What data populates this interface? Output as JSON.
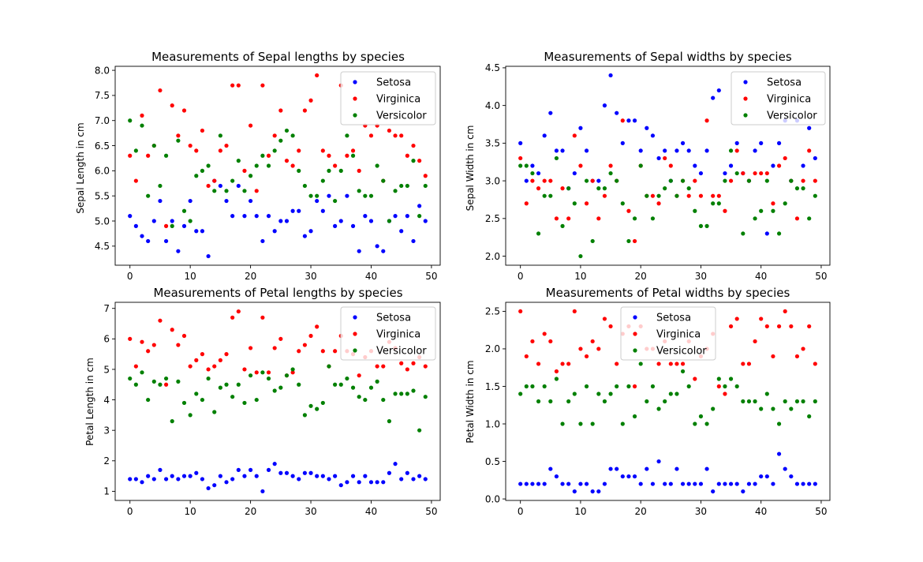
{
  "colors": {
    "Setosa": "#0000ff",
    "Virginica": "#ff0000",
    "Versicolor": "#008000"
  },
  "chart_data": [
    {
      "type": "scatter",
      "title": "Measurements of Sepal lengths by species",
      "xlabel": "",
      "ylabel": "Sepal Length in cm",
      "xlim": [
        -2.45,
        51.45
      ],
      "ylim": [
        4.12,
        8.08
      ],
      "xticks": [
        0,
        10,
        20,
        30,
        40,
        50
      ],
      "yticks": [
        4.5,
        5.0,
        5.5,
        6.0,
        6.5,
        7.0,
        7.5,
        8.0
      ],
      "ytick_labels": [
        "4.5",
        "5.0",
        "5.5",
        "6.0",
        "6.5",
        "7.0",
        "7.5",
        "8.0"
      ],
      "legend_location": "upper right",
      "series": [
        {
          "name": "Setosa",
          "color": "blue",
          "values": [
            5.1,
            4.9,
            4.7,
            4.6,
            5.0,
            5.4,
            4.6,
            5.0,
            4.4,
            4.9,
            5.4,
            4.8,
            4.8,
            4.3,
            5.8,
            5.7,
            5.4,
            5.1,
            5.7,
            5.1,
            5.4,
            5.1,
            4.6,
            5.1,
            4.8,
            5.0,
            5.0,
            5.2,
            5.2,
            4.7,
            4.8,
            5.4,
            5.2,
            5.5,
            4.9,
            5.0,
            5.5,
            4.9,
            4.4,
            5.1,
            5.0,
            4.5,
            4.4,
            5.0,
            5.1,
            4.8,
            5.1,
            4.6,
            5.3,
            5.0
          ]
        },
        {
          "name": "Virginica",
          "color": "red",
          "values": [
            6.3,
            5.8,
            7.1,
            6.3,
            6.5,
            7.6,
            4.9,
            7.3,
            6.7,
            7.2,
            6.5,
            6.4,
            6.8,
            5.7,
            5.8,
            6.4,
            6.5,
            7.7,
            7.7,
            6.0,
            6.9,
            5.6,
            7.7,
            6.3,
            6.7,
            7.2,
            6.2,
            6.1,
            6.4,
            7.2,
            7.4,
            7.9,
            6.4,
            6.3,
            6.1,
            7.7,
            6.3,
            6.4,
            6.0,
            6.9,
            6.7,
            6.9,
            5.8,
            6.8,
            6.7,
            6.7,
            6.3,
            6.5,
            6.2,
            5.9
          ]
        },
        {
          "name": "Versicolor",
          "color": "green",
          "values": [
            7.0,
            6.4,
            6.9,
            5.5,
            6.5,
            5.7,
            6.3,
            4.9,
            6.6,
            5.2,
            5.0,
            5.9,
            6.0,
            6.1,
            5.6,
            6.7,
            5.6,
            5.8,
            6.2,
            5.6,
            5.9,
            6.1,
            6.3,
            6.1,
            6.4,
            6.6,
            6.8,
            6.7,
            6.0,
            5.7,
            5.5,
            5.5,
            5.8,
            6.0,
            5.4,
            6.0,
            6.7,
            6.3,
            5.6,
            5.5,
            5.5,
            6.1,
            5.8,
            5.0,
            5.6,
            5.7,
            5.7,
            6.2,
            5.1,
            5.7
          ]
        }
      ]
    },
    {
      "type": "scatter",
      "title": "Measurements of Sepal widths by species",
      "xlabel": "",
      "ylabel": "Sepal Width in cm",
      "xlim": [
        -2.45,
        51.45
      ],
      "ylim": [
        1.88,
        4.52
      ],
      "xticks": [
        0,
        10,
        20,
        30,
        40,
        50
      ],
      "yticks": [
        2.0,
        2.5,
        3.0,
        3.5,
        4.0,
        4.5
      ],
      "ytick_labels": [
        "2.0",
        "2.5",
        "3.0",
        "3.5",
        "4.0",
        "4.5"
      ],
      "legend_location": "upper right",
      "series": [
        {
          "name": "Setosa",
          "color": "blue",
          "values": [
            3.5,
            3.0,
            3.2,
            3.1,
            3.6,
            3.9,
            3.4,
            3.4,
            2.9,
            3.1,
            3.7,
            3.4,
            3.0,
            3.0,
            4.0,
            4.4,
            3.9,
            3.5,
            3.8,
            3.8,
            3.4,
            3.7,
            3.6,
            3.3,
            3.4,
            3.0,
            3.4,
            3.5,
            3.4,
            3.2,
            3.1,
            3.4,
            4.1,
            4.2,
            3.1,
            3.2,
            3.5,
            3.1,
            3.0,
            3.4,
            3.5,
            2.3,
            3.2,
            3.5,
            3.8,
            3.0,
            3.8,
            3.2,
            3.7,
            3.3
          ]
        },
        {
          "name": "Virginica",
          "color": "red",
          "values": [
            3.3,
            2.7,
            3.0,
            2.9,
            3.0,
            3.0,
            2.5,
            2.9,
            2.5,
            3.6,
            3.2,
            2.7,
            3.0,
            2.5,
            2.8,
            3.2,
            3.0,
            3.8,
            2.6,
            2.2,
            3.2,
            2.8,
            2.8,
            2.7,
            3.3,
            3.2,
            2.8,
            3.0,
            2.8,
            3.0,
            2.8,
            3.8,
            2.8,
            2.8,
            2.6,
            3.0,
            3.4,
            3.1,
            3.0,
            3.1,
            3.1,
            3.1,
            2.7,
            3.2,
            3.3,
            3.0,
            2.5,
            3.0,
            3.4,
            3.0
          ]
        },
        {
          "name": "Versicolor",
          "color": "green",
          "values": [
            3.2,
            3.2,
            3.1,
            2.3,
            2.8,
            2.8,
            3.3,
            2.4,
            2.9,
            2.7,
            2.0,
            3.0,
            2.2,
            2.9,
            2.9,
            3.1,
            3.0,
            2.7,
            2.2,
            2.5,
            3.2,
            2.8,
            2.5,
            2.8,
            2.9,
            3.0,
            2.8,
            3.0,
            2.9,
            2.6,
            2.4,
            2.4,
            2.7,
            2.7,
            3.0,
            3.4,
            3.1,
            2.3,
            3.0,
            2.5,
            2.6,
            3.0,
            2.6,
            2.3,
            2.7,
            3.0,
            2.9,
            2.9,
            2.5,
            2.8
          ]
        }
      ]
    },
    {
      "type": "scatter",
      "title": "Measurements of Petal lengths by species",
      "xlabel": "",
      "ylabel": "Petal Length in cm",
      "xlim": [
        -2.45,
        51.45
      ],
      "ylim": [
        0.7,
        7.2
      ],
      "xticks": [
        0,
        10,
        20,
        30,
        40,
        50
      ],
      "yticks": [
        1,
        2,
        3,
        4,
        5,
        6,
        7
      ],
      "ytick_labels": [
        "1",
        "2",
        "3",
        "4",
        "5",
        "6",
        "7"
      ],
      "legend_location": "upper right",
      "series": [
        {
          "name": "Setosa",
          "color": "blue",
          "values": [
            1.4,
            1.4,
            1.3,
            1.5,
            1.4,
            1.7,
            1.4,
            1.5,
            1.4,
            1.5,
            1.5,
            1.6,
            1.4,
            1.1,
            1.2,
            1.5,
            1.3,
            1.4,
            1.7,
            1.5,
            1.7,
            1.5,
            1.0,
            1.7,
            1.9,
            1.6,
            1.6,
            1.5,
            1.4,
            1.6,
            1.6,
            1.5,
            1.5,
            1.4,
            1.5,
            1.2,
            1.3,
            1.5,
            1.3,
            1.5,
            1.3,
            1.3,
            1.3,
            1.6,
            1.9,
            1.4,
            1.6,
            1.4,
            1.5,
            1.4
          ]
        },
        {
          "name": "Virginica",
          "color": "red",
          "values": [
            6.0,
            5.1,
            5.9,
            5.6,
            5.8,
            6.6,
            4.5,
            6.3,
            5.8,
            6.1,
            5.1,
            5.3,
            5.5,
            5.0,
            5.1,
            5.3,
            5.5,
            6.7,
            6.9,
            5.0,
            5.7,
            4.9,
            6.7,
            4.9,
            5.7,
            6.0,
            4.8,
            4.9,
            5.6,
            5.8,
            6.1,
            6.4,
            5.6,
            5.1,
            5.6,
            6.1,
            5.6,
            5.5,
            4.8,
            5.4,
            5.6,
            5.1,
            5.1,
            5.9,
            5.7,
            5.2,
            5.0,
            5.2,
            5.4,
            5.1
          ]
        },
        {
          "name": "Versicolor",
          "color": "green",
          "values": [
            4.7,
            4.5,
            4.9,
            4.0,
            4.6,
            4.5,
            4.7,
            3.3,
            4.6,
            3.9,
            3.5,
            4.2,
            4.0,
            4.7,
            3.6,
            4.4,
            4.5,
            4.1,
            4.5,
            3.9,
            4.8,
            4.0,
            4.9,
            4.7,
            4.3,
            4.4,
            4.8,
            5.0,
            4.5,
            3.5,
            3.8,
            3.7,
            3.9,
            5.1,
            4.5,
            4.5,
            4.7,
            4.4,
            4.1,
            4.0,
            4.4,
            4.6,
            4.0,
            3.3,
            4.2,
            4.2,
            4.2,
            4.3,
            3.0,
            4.1
          ]
        }
      ]
    },
    {
      "type": "scatter",
      "title": "Measurements of Petal widths by species",
      "xlabel": "",
      "ylabel": "Petal Width in cm",
      "xlim": [
        -2.45,
        51.45
      ],
      "ylim": [
        -0.02,
        2.62
      ],
      "xticks": [
        0,
        10,
        20,
        30,
        40,
        50
      ],
      "yticks": [
        0.0,
        0.5,
        1.0,
        1.5,
        2.0,
        2.5
      ],
      "ytick_labels": [
        "0.0",
        "0.5",
        "1.0",
        "1.5",
        "2.0",
        "2.5"
      ],
      "legend_location": "upper center",
      "series": [
        {
          "name": "Setosa",
          "color": "blue",
          "values": [
            0.2,
            0.2,
            0.2,
            0.2,
            0.2,
            0.4,
            0.3,
            0.2,
            0.2,
            0.1,
            0.2,
            0.2,
            0.1,
            0.1,
            0.2,
            0.4,
            0.4,
            0.3,
            0.3,
            0.3,
            0.2,
            0.4,
            0.2,
            0.5,
            0.2,
            0.2,
            0.4,
            0.2,
            0.2,
            0.2,
            0.2,
            0.4,
            0.1,
            0.2,
            0.2,
            0.2,
            0.2,
            0.1,
            0.2,
            0.2,
            0.3,
            0.3,
            0.2,
            0.6,
            0.4,
            0.3,
            0.2,
            0.2,
            0.2,
            0.2
          ]
        },
        {
          "name": "Virginica",
          "color": "red",
          "values": [
            2.5,
            1.9,
            2.1,
            1.8,
            2.2,
            2.1,
            1.7,
            1.8,
            1.8,
            2.5,
            2.0,
            1.9,
            2.1,
            2.0,
            2.4,
            2.3,
            1.8,
            2.2,
            2.3,
            1.5,
            2.3,
            2.0,
            2.0,
            1.8,
            2.1,
            1.8,
            1.8,
            1.8,
            2.1,
            1.6,
            1.9,
            2.0,
            2.2,
            1.5,
            1.4,
            2.3,
            2.4,
            1.8,
            1.8,
            2.1,
            2.4,
            2.3,
            1.9,
            2.3,
            2.5,
            2.3,
            1.9,
            2.0,
            2.3,
            1.8
          ]
        },
        {
          "name": "Versicolor",
          "color": "green",
          "values": [
            1.4,
            1.5,
            1.5,
            1.3,
            1.5,
            1.3,
            1.6,
            1.0,
            1.3,
            1.4,
            1.0,
            1.5,
            1.0,
            1.4,
            1.3,
            1.4,
            1.5,
            1.0,
            1.5,
            1.1,
            1.8,
            1.3,
            1.5,
            1.2,
            1.3,
            1.4,
            1.4,
            1.7,
            1.5,
            1.0,
            1.1,
            1.0,
            1.2,
            1.6,
            1.5,
            1.6,
            1.5,
            1.3,
            1.3,
            1.3,
            1.2,
            1.4,
            1.2,
            1.0,
            1.3,
            1.2,
            1.3,
            1.3,
            1.1,
            1.3
          ]
        }
      ]
    }
  ]
}
